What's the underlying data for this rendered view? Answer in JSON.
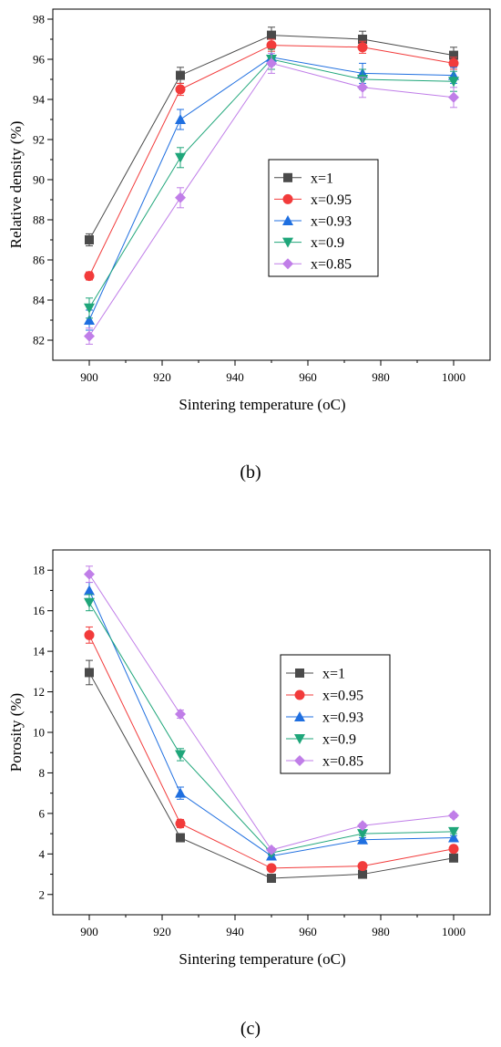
{
  "chart_data": [
    {
      "type": "line",
      "panel_label": "(b)",
      "xlabel": "Sintering temperature (oC)",
      "ylabel": "Relative density (%)",
      "xlim": [
        890,
        1010
      ],
      "ylim": [
        81,
        98.5
      ],
      "xticks": [
        900,
        920,
        940,
        960,
        980,
        1000
      ],
      "yticks": [
        82,
        84,
        86,
        88,
        90,
        92,
        94,
        96,
        98
      ],
      "grid": false,
      "legend_position": "center-right",
      "x": [
        900,
        925,
        950,
        975,
        1000
      ],
      "series": [
        {
          "name": "x=1",
          "color": "#4a4a4a",
          "marker": "square",
          "values": [
            87.0,
            95.2,
            97.2,
            97.0,
            96.2
          ],
          "errors": [
            0.3,
            0.4,
            0.4,
            0.4,
            0.4
          ]
        },
        {
          "name": "x=0.95",
          "color": "#f23b3b",
          "marker": "circle",
          "values": [
            85.2,
            94.5,
            96.7,
            96.6,
            95.8
          ],
          "errors": [
            0.2,
            0.3,
            0.3,
            0.3,
            0.3
          ]
        },
        {
          "name": "x=0.93",
          "color": "#1f6fe0",
          "marker": "triangle-up",
          "values": [
            83.0,
            93.0,
            96.1,
            95.3,
            95.2
          ],
          "errors": [
            0.5,
            0.5,
            0.4,
            0.5,
            0.4
          ]
        },
        {
          "name": "x=0.9",
          "color": "#1fa67a",
          "marker": "triangle-down",
          "values": [
            83.6,
            91.1,
            96.0,
            95.0,
            94.9
          ],
          "errors": [
            0.5,
            0.5,
            0.5,
            0.5,
            0.5
          ]
        },
        {
          "name": "x=0.85",
          "color": "#c07ee8",
          "marker": "diamond",
          "values": [
            82.2,
            89.1,
            95.8,
            94.6,
            94.1
          ],
          "errors": [
            0.4,
            0.5,
            0.5,
            0.5,
            0.5
          ]
        }
      ]
    },
    {
      "type": "line",
      "panel_label": "(c)",
      "xlabel": "Sintering temperature (oC)",
      "ylabel": "Porosity (%)",
      "xlim": [
        890,
        1010
      ],
      "ylim": [
        1.0,
        19.0
      ],
      "xticks": [
        900,
        920,
        940,
        960,
        980,
        1000
      ],
      "yticks": [
        2,
        4,
        6,
        8,
        10,
        12,
        14,
        16,
        18
      ],
      "grid": false,
      "legend_position": "center-right",
      "x": [
        900,
        925,
        950,
        975,
        1000
      ],
      "series": [
        {
          "name": "x=1",
          "color": "#4a4a4a",
          "marker": "square",
          "values": [
            12.95,
            4.8,
            2.8,
            3.0,
            3.8
          ],
          "errors": [
            0.6,
            0.2,
            0.1,
            0.1,
            0.1
          ]
        },
        {
          "name": "x=0.95",
          "color": "#f23b3b",
          "marker": "circle",
          "values": [
            14.8,
            5.5,
            3.3,
            3.4,
            4.25
          ],
          "errors": [
            0.4,
            0.2,
            0.1,
            0.1,
            0.1
          ]
        },
        {
          "name": "x=0.93",
          "color": "#1f6fe0",
          "marker": "triangle-up",
          "values": [
            17.0,
            7.0,
            3.9,
            4.7,
            4.8
          ],
          "errors": [
            0.4,
            0.3,
            0.1,
            0.1,
            0.1
          ]
        },
        {
          "name": "x=0.9",
          "color": "#1fa67a",
          "marker": "triangle-down",
          "values": [
            16.4,
            8.9,
            4.05,
            5.0,
            5.1
          ],
          "errors": [
            0.4,
            0.3,
            0.1,
            0.1,
            0.1
          ]
        },
        {
          "name": "x=0.85",
          "color": "#c07ee8",
          "marker": "diamond",
          "values": [
            17.8,
            10.9,
            4.2,
            5.4,
            5.9
          ],
          "errors": [
            0.4,
            0.2,
            0.1,
            0.1,
            0.1
          ]
        }
      ]
    }
  ]
}
